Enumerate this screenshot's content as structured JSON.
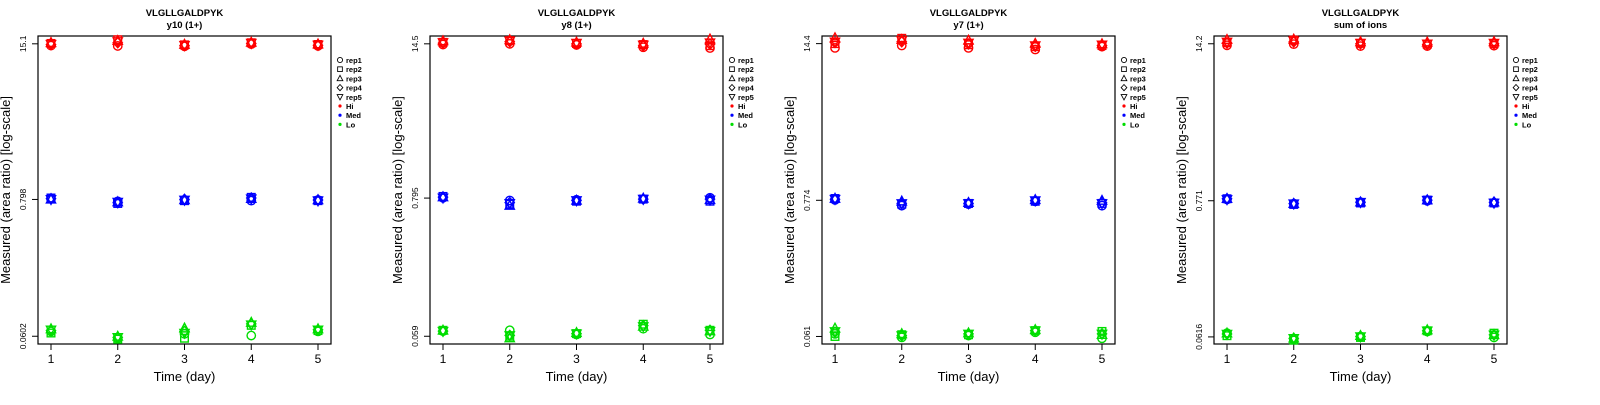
{
  "colors": {
    "Hi": "#ff0000",
    "Med": "#0000ff",
    "Lo": "#00dd00",
    "axis": "#000000",
    "legend_text": "#000000"
  },
  "legend": [
    {
      "label": "rep1",
      "kind": "shape",
      "shape": "circle"
    },
    {
      "label": "rep2",
      "kind": "shape",
      "shape": "square"
    },
    {
      "label": "rep3",
      "kind": "shape",
      "shape": "triangle-up"
    },
    {
      "label": "rep4",
      "kind": "shape",
      "shape": "diamond"
    },
    {
      "label": "rep5",
      "kind": "shape",
      "shape": "triangle-down"
    },
    {
      "label": "Hi",
      "kind": "dot",
      "color_key": "Hi"
    },
    {
      "label": "Med",
      "kind": "dot",
      "color_key": "Med"
    },
    {
      "label": "Lo",
      "kind": "dot",
      "color_key": "Lo"
    }
  ],
  "chart_data": [
    {
      "type": "scatter",
      "title": "VLGLLGALDPYK",
      "subtitle": "y10 (1+)",
      "xlabel": "Time (day)",
      "ylabel": "Measured (area ratio) [log-scale]",
      "log_y": true,
      "x_ticks": [
        1,
        2,
        3,
        4,
        5
      ],
      "y_ticks": [
        "0.0602",
        "0.798",
        "15.1"
      ],
      "ylim": [
        0.052,
        17.5
      ],
      "grid": false,
      "legend_position": "right",
      "series": [
        {
          "group": "Hi",
          "rep": "rep1",
          "x": [
            1,
            2,
            3,
            4,
            5
          ],
          "y": [
            14.6,
            14.5,
            14.4,
            15.0,
            14.5
          ]
        },
        {
          "group": "Hi",
          "rep": "rep2",
          "x": [
            1,
            2,
            3,
            4,
            5
          ],
          "y": [
            15.2,
            16.3,
            14.8,
            15.4,
            14.9
          ]
        },
        {
          "group": "Hi",
          "rep": "rep3",
          "x": [
            1,
            2,
            3,
            4,
            5
          ],
          "y": [
            15.4,
            16.0,
            14.9,
            15.5,
            15.0
          ]
        },
        {
          "group": "Hi",
          "rep": "rep4",
          "x": [
            1,
            2,
            3,
            4,
            5
          ],
          "y": [
            14.9,
            15.4,
            14.6,
            15.2,
            14.7
          ]
        },
        {
          "group": "Hi",
          "rep": "rep5",
          "x": [
            1,
            2,
            3,
            4,
            5
          ],
          "y": [
            15.0,
            15.8,
            14.7,
            15.3,
            14.8
          ]
        },
        {
          "group": "Med",
          "rep": "rep1",
          "x": [
            1,
            2,
            3,
            4,
            5
          ],
          "y": [
            0.81,
            0.77,
            0.79,
            0.78,
            0.79
          ]
        },
        {
          "group": "Med",
          "rep": "rep2",
          "x": [
            1,
            2,
            3,
            4,
            5
          ],
          "y": [
            0.82,
            0.74,
            0.78,
            0.83,
            0.78
          ]
        },
        {
          "group": "Med",
          "rep": "rep3",
          "x": [
            1,
            2,
            3,
            4,
            5
          ],
          "y": [
            0.8,
            0.76,
            0.79,
            0.81,
            0.79
          ]
        },
        {
          "group": "Med",
          "rep": "rep4",
          "x": [
            1,
            2,
            3,
            4,
            5
          ],
          "y": [
            0.81,
            0.75,
            0.8,
            0.82,
            0.79
          ]
        },
        {
          "group": "Med",
          "rep": "rep5",
          "x": [
            1,
            2,
            3,
            4,
            5
          ],
          "y": [
            0.8,
            0.76,
            0.79,
            0.81,
            0.78
          ]
        },
        {
          "group": "Lo",
          "rep": "rep1",
          "x": [
            1,
            2,
            3,
            4,
            5
          ],
          "y": [
            0.066,
            0.058,
            0.063,
            0.061,
            0.066
          ]
        },
        {
          "group": "Lo",
          "rep": "rep2",
          "x": [
            1,
            2,
            3,
            4,
            5
          ],
          "y": [
            0.064,
            0.057,
            0.058,
            0.074,
            0.067
          ]
        },
        {
          "group": "Lo",
          "rep": "rep3",
          "x": [
            1,
            2,
            3,
            4,
            5
          ],
          "y": [
            0.069,
            0.06,
            0.07,
            0.078,
            0.069
          ]
        },
        {
          "group": "Lo",
          "rep": "rep4",
          "x": [
            1,
            2,
            3,
            4,
            5
          ],
          "y": [
            0.067,
            0.059,
            0.066,
            0.076,
            0.068
          ]
        },
        {
          "group": "Lo",
          "rep": "rep5",
          "x": [
            1,
            2,
            3,
            4,
            5
          ],
          "y": [
            0.068,
            0.059,
            0.064,
            0.075,
            0.068
          ]
        }
      ]
    },
    {
      "type": "scatter",
      "title": "VLGLLGALDPYK",
      "subtitle": "y8 (1+)",
      "xlabel": "Time (day)",
      "ylabel": "Measured (area ratio) [log-scale]",
      "log_y": true,
      "x_ticks": [
        1,
        2,
        3,
        4,
        5
      ],
      "y_ticks": [
        "0.059",
        "0.795",
        "14.5"
      ],
      "ylim": [
        0.051,
        16.8
      ],
      "grid": false,
      "legend_position": "right",
      "series": [
        {
          "group": "Hi",
          "rep": "rep1",
          "x": [
            1,
            2,
            3,
            4,
            5
          ],
          "y": [
            14.3,
            14.5,
            14.2,
            13.6,
            13.4
          ]
        },
        {
          "group": "Hi",
          "rep": "rep2",
          "x": [
            1,
            2,
            3,
            4,
            5
          ],
          "y": [
            14.9,
            15.4,
            14.6,
            14.3,
            14.0
          ]
        },
        {
          "group": "Hi",
          "rep": "rep3",
          "x": [
            1,
            2,
            3,
            4,
            5
          ],
          "y": [
            15.3,
            15.6,
            14.9,
            14.6,
            15.8
          ]
        },
        {
          "group": "Hi",
          "rep": "rep4",
          "x": [
            1,
            2,
            3,
            4,
            5
          ],
          "y": [
            14.7,
            15.1,
            14.5,
            14.0,
            14.4
          ]
        },
        {
          "group": "Hi",
          "rep": "rep5",
          "x": [
            1,
            2,
            3,
            4,
            5
          ],
          "y": [
            14.9,
            15.3,
            14.7,
            14.2,
            14.8
          ]
        },
        {
          "group": "Med",
          "rep": "rep1",
          "x": [
            1,
            2,
            3,
            4,
            5
          ],
          "y": [
            0.8,
            0.76,
            0.77,
            0.78,
            0.8
          ]
        },
        {
          "group": "Med",
          "rep": "rep2",
          "x": [
            1,
            2,
            3,
            4,
            5
          ],
          "y": [
            0.82,
            0.71,
            0.75,
            0.78,
            0.75
          ]
        },
        {
          "group": "Med",
          "rep": "rep3",
          "x": [
            1,
            2,
            3,
            4,
            5
          ],
          "y": [
            0.81,
            0.69,
            0.76,
            0.79,
            0.77
          ]
        },
        {
          "group": "Med",
          "rep": "rep4",
          "x": [
            1,
            2,
            3,
            4,
            5
          ],
          "y": [
            0.81,
            0.73,
            0.76,
            0.78,
            0.78
          ]
        },
        {
          "group": "Med",
          "rep": "rep5",
          "x": [
            1,
            2,
            3,
            4,
            5
          ],
          "y": [
            0.8,
            0.72,
            0.76,
            0.78,
            0.77
          ]
        },
        {
          "group": "Lo",
          "rep": "rep1",
          "x": [
            1,
            2,
            3,
            4,
            5
          ],
          "y": [
            0.065,
            0.066,
            0.061,
            0.068,
            0.061
          ]
        },
        {
          "group": "Lo",
          "rep": "rep2",
          "x": [
            1,
            2,
            3,
            4,
            5
          ],
          "y": [
            0.066,
            0.059,
            0.062,
            0.074,
            0.066
          ]
        },
        {
          "group": "Lo",
          "rep": "rep3",
          "x": [
            1,
            2,
            3,
            4,
            5
          ],
          "y": [
            0.066,
            0.057,
            0.063,
            0.071,
            0.065
          ]
        },
        {
          "group": "Lo",
          "rep": "rep4",
          "x": [
            1,
            2,
            3,
            4,
            5
          ],
          "y": [
            0.065,
            0.06,
            0.062,
            0.072,
            0.066
          ]
        },
        {
          "group": "Lo",
          "rep": "rep5",
          "x": [
            1,
            2,
            3,
            4,
            5
          ],
          "y": [
            0.065,
            0.06,
            0.062,
            0.071,
            0.065
          ]
        }
      ]
    },
    {
      "type": "scatter",
      "title": "VLGLLGALDPYK",
      "subtitle": "y7 (1+)",
      "xlabel": "Time (day)",
      "ylabel": "Measured (area ratio) [log-scale]",
      "log_y": true,
      "x_ticks": [
        1,
        2,
        3,
        4,
        5
      ],
      "y_ticks": [
        "0.061",
        "0.774",
        "14.4"
      ],
      "ylim": [
        0.053,
        16.6
      ],
      "grid": false,
      "legend_position": "right",
      "series": [
        {
          "group": "Hi",
          "rep": "rep1",
          "x": [
            1,
            2,
            3,
            4,
            5
          ],
          "y": [
            13.3,
            13.9,
            13.3,
            12.9,
            13.6
          ]
        },
        {
          "group": "Hi",
          "rep": "rep2",
          "x": [
            1,
            2,
            3,
            4,
            5
          ],
          "y": [
            14.4,
            15.9,
            14.1,
            13.6,
            13.9
          ]
        },
        {
          "group": "Hi",
          "rep": "rep3",
          "x": [
            1,
            2,
            3,
            4,
            5
          ],
          "y": [
            16.0,
            15.5,
            15.3,
            14.4,
            14.3
          ]
        },
        {
          "group": "Hi",
          "rep": "rep4",
          "x": [
            1,
            2,
            3,
            4,
            5
          ],
          "y": [
            14.7,
            14.9,
            14.3,
            13.7,
            13.9
          ]
        },
        {
          "group": "Hi",
          "rep": "rep5",
          "x": [
            1,
            2,
            3,
            4,
            5
          ],
          "y": [
            14.9,
            15.3,
            14.6,
            13.9,
            14.1
          ]
        },
        {
          "group": "Med",
          "rep": "rep1",
          "x": [
            1,
            2,
            3,
            4,
            5
          ],
          "y": [
            0.78,
            0.7,
            0.72,
            0.76,
            0.7
          ]
        },
        {
          "group": "Med",
          "rep": "rep2",
          "x": [
            1,
            2,
            3,
            4,
            5
          ],
          "y": [
            0.8,
            0.72,
            0.73,
            0.76,
            0.73
          ]
        },
        {
          "group": "Med",
          "rep": "rep3",
          "x": [
            1,
            2,
            3,
            4,
            5
          ],
          "y": [
            0.8,
            0.76,
            0.74,
            0.78,
            0.77
          ]
        },
        {
          "group": "Med",
          "rep": "rep4",
          "x": [
            1,
            2,
            3,
            4,
            5
          ],
          "y": [
            0.79,
            0.73,
            0.73,
            0.77,
            0.74
          ]
        },
        {
          "group": "Med",
          "rep": "rep5",
          "x": [
            1,
            2,
            3,
            4,
            5
          ],
          "y": [
            0.79,
            0.73,
            0.73,
            0.77,
            0.73
          ]
        },
        {
          "group": "Lo",
          "rep": "rep1",
          "x": [
            1,
            2,
            3,
            4,
            5
          ],
          "y": [
            0.064,
            0.06,
            0.062,
            0.066,
            0.059
          ]
        },
        {
          "group": "Lo",
          "rep": "rep2",
          "x": [
            1,
            2,
            3,
            4,
            5
          ],
          "y": [
            0.061,
            0.063,
            0.063,
            0.068,
            0.067
          ]
        },
        {
          "group": "Lo",
          "rep": "rep3",
          "x": [
            1,
            2,
            3,
            4,
            5
          ],
          "y": [
            0.071,
            0.064,
            0.065,
            0.069,
            0.063
          ]
        },
        {
          "group": "Lo",
          "rep": "rep4",
          "x": [
            1,
            2,
            3,
            4,
            5
          ],
          "y": [
            0.066,
            0.062,
            0.064,
            0.068,
            0.064
          ]
        },
        {
          "group": "Lo",
          "rep": "rep5",
          "x": [
            1,
            2,
            3,
            4,
            5
          ],
          "y": [
            0.067,
            0.062,
            0.064,
            0.068,
            0.064
          ]
        }
      ]
    },
    {
      "type": "scatter",
      "title": "VLGLLGALDPYK",
      "subtitle": "sum of ions",
      "xlabel": "Time (day)",
      "ylabel": "Measured (area ratio) [log-scale]",
      "log_y": true,
      "x_ticks": [
        1,
        2,
        3,
        4,
        5
      ],
      "y_ticks": [
        "0.0616",
        "0.771",
        "14.2"
      ],
      "ylim": [
        0.054,
        16.4
      ],
      "grid": false,
      "legend_position": "right",
      "series": [
        {
          "group": "Hi",
          "rep": "rep1",
          "x": [
            1,
            2,
            3,
            4,
            5
          ],
          "y": [
            13.8,
            14.1,
            13.6,
            13.6,
            13.7
          ]
        },
        {
          "group": "Hi",
          "rep": "rep2",
          "x": [
            1,
            2,
            3,
            4,
            5
          ],
          "y": [
            14.5,
            15.2,
            14.3,
            14.1,
            14.2
          ]
        },
        {
          "group": "Hi",
          "rep": "rep3",
          "x": [
            1,
            2,
            3,
            4,
            5
          ],
          "y": [
            15.3,
            15.4,
            14.7,
            14.6,
            14.7
          ]
        },
        {
          "group": "Hi",
          "rep": "rep4",
          "x": [
            1,
            2,
            3,
            4,
            5
          ],
          "y": [
            14.4,
            14.7,
            14.2,
            14.0,
            14.2
          ]
        },
        {
          "group": "Hi",
          "rep": "rep5",
          "x": [
            1,
            2,
            3,
            4,
            5
          ],
          "y": [
            14.7,
            15.0,
            14.4,
            14.2,
            14.4
          ]
        },
        {
          "group": "Med",
          "rep": "rep1",
          "x": [
            1,
            2,
            3,
            4,
            5
          ],
          "y": [
            0.79,
            0.73,
            0.75,
            0.77,
            0.74
          ]
        },
        {
          "group": "Med",
          "rep": "rep2",
          "x": [
            1,
            2,
            3,
            4,
            5
          ],
          "y": [
            0.8,
            0.72,
            0.74,
            0.78,
            0.74
          ]
        },
        {
          "group": "Med",
          "rep": "rep3",
          "x": [
            1,
            2,
            3,
            4,
            5
          ],
          "y": [
            0.8,
            0.73,
            0.75,
            0.78,
            0.75
          ]
        },
        {
          "group": "Med",
          "rep": "rep4",
          "x": [
            1,
            2,
            3,
            4,
            5
          ],
          "y": [
            0.8,
            0.73,
            0.75,
            0.78,
            0.75
          ]
        },
        {
          "group": "Med",
          "rep": "rep5",
          "x": [
            1,
            2,
            3,
            4,
            5
          ],
          "y": [
            0.79,
            0.73,
            0.75,
            0.78,
            0.74
          ]
        }
      ]
    }
  ]
}
